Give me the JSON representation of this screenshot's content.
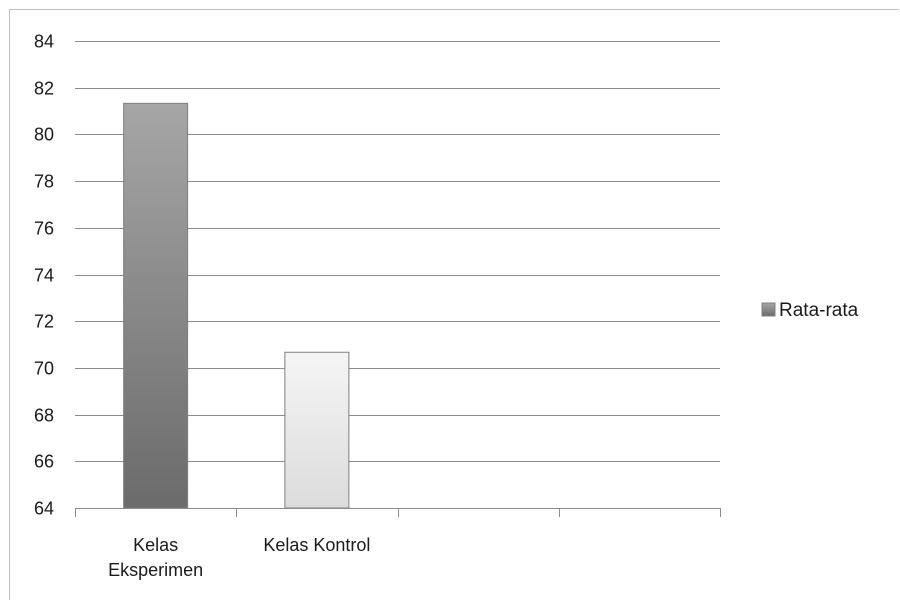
{
  "chart_data": {
    "type": "bar",
    "categories": [
      [
        "Kelas",
        "Eksperimen"
      ],
      [
        "Kelas Kontrol"
      ],
      [
        ""
      ],
      [
        ""
      ]
    ],
    "series": [
      {
        "name": "Rata-rata",
        "values": [
          81.33,
          70.67,
          null,
          null
        ],
        "bar_colors": [
          {
            "top": "#a6a6a6",
            "bottom": "#6b6b6b"
          },
          {
            "top": "#f5f5f5",
            "bottom": "#dcdcdc"
          }
        ]
      }
    ],
    "ylim": [
      64,
      84
    ],
    "ytick_step": 2,
    "grid": true,
    "legend_position": "right",
    "colors": {
      "grid": "#8c8c8c",
      "axis": "#8c8c8c",
      "text": "#1a1a1a"
    }
  }
}
